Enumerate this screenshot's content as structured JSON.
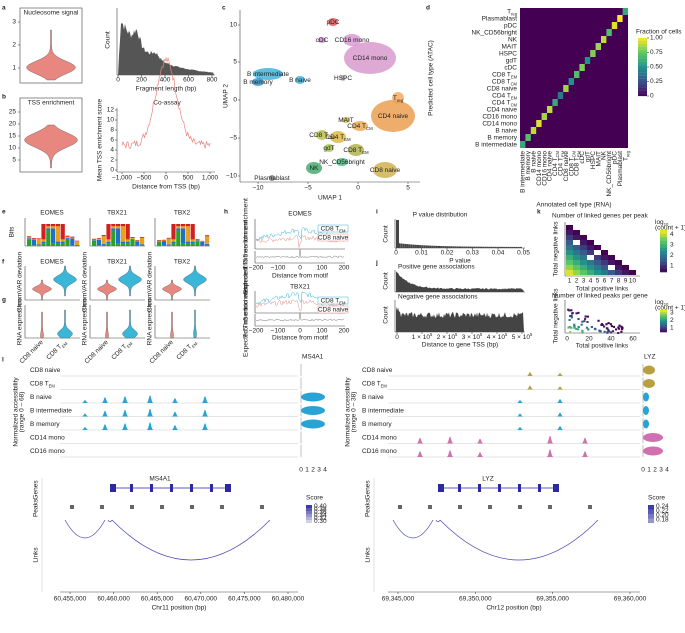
{
  "a": {
    "letter": "a",
    "title": "Nucleosome signal",
    "violin_ticks": [
      "1",
      "2",
      "3"
    ],
    "hist_ylabel": "Count",
    "hist_xticks": [
      "0",
      "200",
      "400",
      "600",
      "800"
    ],
    "hist_xlabel": "Fragment length (bp)"
  },
  "b": {
    "letter": "b",
    "title": "TSS enrichment",
    "violin_ticks": [
      "5",
      "10",
      "15",
      "20",
      "25"
    ],
    "line_title": "Co-assay",
    "line_ylabel": "Mean TSS enrichment score",
    "line_yticks": [
      "0",
      "2",
      "4",
      "6",
      "8",
      "10",
      "12"
    ],
    "line_xticks": [
      "−1,000",
      "−500",
      "0",
      "500",
      "1,000"
    ],
    "line_xlabel": "Distance from TSS (bp)"
  },
  "c": {
    "letter": "c",
    "xlabel": "UMAP 1",
    "ylabel": "UMAP 2",
    "xticks": [
      "−10",
      "−5",
      "0",
      "5"
    ],
    "yticks": [
      "10",
      "5",
      "0",
      "−5",
      "−10"
    ],
    "clusters": [
      {
        "label": "pDC",
        "color": "#e0403c"
      },
      {
        "label": "cDC",
        "color": "#c77cc7"
      },
      {
        "label": "CD16 mono",
        "color": "#d58bd0"
      },
      {
        "label": "CD14 mono",
        "color": "#d48cc8"
      },
      {
        "label": "HSPC",
        "color": "#b0b0b0"
      },
      {
        "label": "B intermediate",
        "color": "#27a9d8"
      },
      {
        "label": "B naive",
        "color": "#27a9d8"
      },
      {
        "label": "B memory",
        "color": "#1e88c0"
      },
      {
        "label": "CD4 naive",
        "color": "#e8923a"
      },
      {
        "label": "T",
        "sub": "reg",
        "color": "#f0a050"
      },
      {
        "label": "MAIT",
        "color": "#c8b030"
      },
      {
        "label": "CD4 T",
        "sub": "CM",
        "color": "#e9a040"
      },
      {
        "label": "CD4 T",
        "sub": "EM",
        "color": "#d9b030"
      },
      {
        "label": "CD8 T",
        "sub": "CM",
        "color": "#b0b838"
      },
      {
        "label": "gdT",
        "color": "#9fc23a"
      },
      {
        "label": "CD8 T",
        "sub": "EM",
        "color": "#a8a838"
      },
      {
        "label": "NK_CD56bright",
        "color": "#3ab070"
      },
      {
        "label": "NK",
        "color": "#2ca05a"
      },
      {
        "label": "CD8 naive",
        "color": "#c8a838"
      },
      {
        "label": "Plasmablast",
        "color": "#707070"
      }
    ]
  },
  "d": {
    "letter": "d",
    "ylabel": "Predicted cell type (ATAC)",
    "xlabel": "Annotated cell type (RNA)",
    "colorbar_title": "Fraction of cells",
    "colorbar_ticks": [
      0,
      0.25,
      {
        "value": 0.5,
        "label": "0.50"
      },
      0.75,
      {
        "value": 1,
        "label": "1.00"
      }
    ],
    "rows": [
      {
        "label": "T",
        "sub": "reg"
      },
      {
        "label": "Plasmablast"
      },
      {
        "label": "pDC"
      },
      {
        "label": "NK_CD56bright"
      },
      {
        "label": "NK"
      },
      {
        "label": "MAIT"
      },
      {
        "label": "HSPC"
      },
      {
        "label": "gdT"
      },
      {
        "label": "cDC"
      },
      {
        "label": "CD8 T",
        "sub": "EM"
      },
      {
        "label": "CD8 T",
        "sub": "CM"
      },
      {
        "label": "CD8 naive"
      },
      {
        "label": "CD4 T",
        "sub": "EM"
      },
      {
        "label": "CD4 T",
        "sub": "CM"
      },
      {
        "label": "CD4 naive"
      },
      {
        "label": "CD16 mono"
      },
      {
        "label": "CD14 mono"
      },
      {
        "label": "B naive"
      },
      {
        "label": "B memory"
      },
      {
        "label": "B intermediate"
      }
    ],
    "cols": [
      {
        "label": "B intermediate"
      },
      {
        "label": "B memory"
      },
      {
        "label": "B naive"
      },
      {
        "label": "CD14 mono"
      },
      {
        "label": "CD16 mono"
      },
      {
        "label": "CD4 naive"
      },
      {
        "label": "CD4 T",
        "sub": "CM"
      },
      {
        "label": "CD4 T",
        "sub": "EM"
      },
      {
        "label": "CD8 naive"
      },
      {
        "label": "CD8 T",
        "sub": "CM"
      },
      {
        "label": "CD8 T",
        "sub": "EM"
      },
      {
        "label": "cDC"
      },
      {
        "label": "gdT"
      },
      {
        "label": "HSPC"
      },
      {
        "label": "MAIT"
      },
      {
        "label": "NK"
      },
      {
        "label": "NK_CD56bright"
      },
      {
        "label": "pDC"
      },
      {
        "label": "Plasmablast"
      },
      {
        "label": "T",
        "sub": "reg"
      }
    ],
    "diagonal": [
      0.6,
      0.7,
      0.9,
      0.95,
      0.85,
      0.9,
      0.6,
      0.4,
      0.85,
      0.5,
      0.7,
      0.8,
      0.5,
      0.8,
      0.85,
      0.9,
      0.7,
      0.95,
      1,
      0.6
    ]
  },
  "e": {
    "letter": "e",
    "ylabel": "Bits",
    "titles": [
      "EOMES",
      "TBX21",
      "TBX2"
    ]
  },
  "f": {
    "letter": "f",
    "ylabel": "ChromVAR deviation",
    "titles": [
      "EOMES",
      "TBX21",
      "TBX2"
    ]
  },
  "g": {
    "letter": "g",
    "ylabel": "RNA expression",
    "xticks": [
      {
        "label": "CD8 naive"
      },
      {
        "label": "CD8 T",
        "sub": "EM"
      }
    ]
  },
  "h": {
    "letter": "h",
    "titles": [
      "EOMES",
      "TBX21"
    ],
    "ylabel_top": "Tn5 insertion enrichment",
    "ylabel_bottom": "Expected Tn5 enrichment",
    "legend": [
      {
        "label": "CD8 T",
        "sub": "EM",
        "color": "#3ab6d8"
      },
      {
        "label": "CD8 naive",
        "color": "#e8908a"
      }
    ],
    "xticks": [
      "−200",
      "−100",
      "0",
      "100",
      "200"
    ],
    "xlabel": "Distance from motif"
  },
  "i": {
    "letter": "i",
    "title": "P value distribution",
    "ylabel": "Count",
    "xticks": [
      "0",
      "0.01",
      "0.02",
      "0.03",
      "0.04",
      "0.05"
    ],
    "xlabel": "P value"
  },
  "j": {
    "letter": "j",
    "titles": [
      "Positive gene associations",
      "Negative gene associations"
    ],
    "ylabel": "Count",
    "xticks": [
      {
        "label": "0"
      },
      {
        "label": "1 × 10",
        "sup": "5"
      },
      {
        "label": "2 × 10",
        "sup": "5"
      },
      {
        "label": "3 × 10",
        "sup": "5"
      },
      {
        "label": "4 × 10",
        "sup": "5"
      },
      {
        "label": "5 × 10",
        "sup": "5"
      }
    ],
    "xlabel": "Distance to gene TSS (bp)"
  },
  "k": {
    "letter": "k",
    "titles": [
      "Number of linked genes per peak",
      "Number of linked peaks per gene"
    ],
    "xlabel": "Total positive links",
    "ylabel": "Total negative links",
    "colorbar_title": {
      "label": "log",
      "sub": "10"
    },
    "colorbar_title2": "(count + 1)",
    "xticks_top": [
      "1",
      "2",
      "3",
      "4",
      "5",
      "6",
      "7",
      "8",
      "9",
      "10"
    ],
    "colorbar_ticks_top": [
      "1",
      "2",
      "3",
      "4"
    ],
    "xticks_bottom": [
      "0",
      "20",
      "40",
      "60"
    ],
    "colorbar_ticks_bottom": [
      "1",
      "2",
      "3"
    ]
  },
  "l": {
    "letter": "l",
    "tracks": [
      {
        "label": "CD8 naive"
      },
      {
        "label": "CD8 T",
        "sub": "EM"
      },
      {
        "label": "B naive"
      },
      {
        "label": "B intermediate"
      },
      {
        "label": "B memory"
      },
      {
        "label": "CD14 mono"
      },
      {
        "label": "CD16 mono"
      }
    ],
    "ylabel": "Normalized accessibility",
    "row_labels": [
      "Genes",
      "Peaks",
      "Links"
    ],
    "score_title": "Score",
    "expr_ticks": [
      "0",
      "1",
      "2",
      "3",
      "4"
    ],
    "left": {
      "gene": "MS4A1",
      "range": "(range 0 – 68)",
      "score_ticks": [
        "0.40",
        "0.38",
        "0.36",
        "0.34",
        "0.32",
        "0.30"
      ],
      "xticks": [
        "60,455,000",
        "60,460,000",
        "60,465,000",
        "60,470,000",
        "60,475,000",
        "60,480,000"
      ],
      "xlabel": "Chr11 position (bp)"
    },
    "right": {
      "gene": "LYZ",
      "range": "(range 0 – 38)",
      "score_ticks": [
        "0.24",
        "0.22",
        "0.20",
        "0.18"
      ],
      "xticks": [
        "69,345,000",
        "69,350,000",
        "69,355,000",
        "69,360,000"
      ],
      "xlabel": "Chr12 position (bp)"
    }
  }
}
